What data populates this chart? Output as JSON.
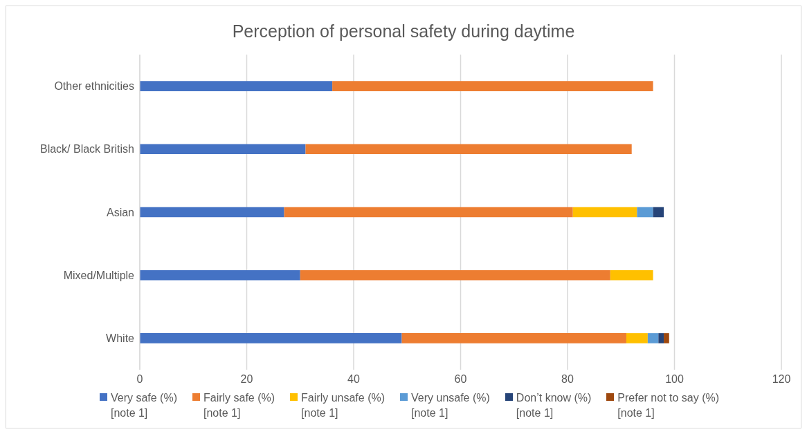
{
  "chart_data": {
    "type": "bar",
    "orientation": "horizontal",
    "stacked": true,
    "title": "Perception of personal safety during daytime",
    "categories": [
      "Other ethnicities",
      "Black/ Black British",
      "Asian",
      "Mixed/Multiple",
      "White"
    ],
    "series": [
      {
        "name": "Very safe (%) [note 1]",
        "color": "#4472c4",
        "values": [
          36,
          31,
          27,
          30,
          49
        ]
      },
      {
        "name": "Fairly safe (%) [note 1]",
        "color": "#ed7d31",
        "values": [
          60,
          61,
          54,
          58,
          42
        ]
      },
      {
        "name": "Fairly unsafe (%) [note 1]",
        "color": "#ffc000",
        "values": [
          null,
          null,
          12,
          8,
          4
        ]
      },
      {
        "name": "Very unsafe (%) [note 1]",
        "color": "#5b9bd5",
        "values": [
          null,
          null,
          3,
          null,
          2
        ]
      },
      {
        "name": "Don’t know (%) [note 1]",
        "color": "#264478",
        "values": [
          null,
          null,
          2,
          null,
          1
        ]
      },
      {
        "name": "Prefer not to say (%) [note 1]",
        "color": "#9e480e",
        "values": [
          null,
          null,
          null,
          null,
          1
        ]
      }
    ],
    "xlim": [
      0,
      120
    ],
    "xticks": [
      0,
      20,
      40,
      60,
      80,
      100,
      120
    ],
    "grid": "x",
    "legend": "bottom"
  }
}
